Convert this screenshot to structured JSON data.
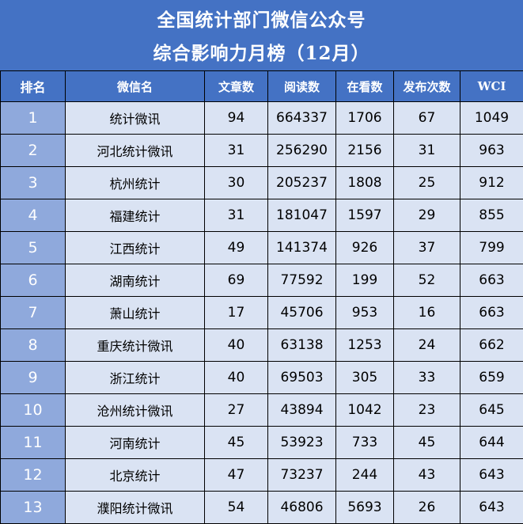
{
  "title": {
    "line1": "全国统计部门微信公众号",
    "line2": "综合影响力月榜（12月）"
  },
  "columns": [
    "排名",
    "微信名",
    "文章数",
    "阅读数",
    "在看数",
    "发布次数",
    "WCI"
  ],
  "rows": [
    {
      "rank": "1",
      "name": "统计微讯",
      "articles": "94",
      "reads": "664337",
      "likes": "1706",
      "posts": "67",
      "wci": "1049"
    },
    {
      "rank": "2",
      "name": "河北统计微讯",
      "articles": "31",
      "reads": "256290",
      "likes": "2156",
      "posts": "31",
      "wci": "963"
    },
    {
      "rank": "3",
      "name": "杭州统计",
      "articles": "30",
      "reads": "205237",
      "likes": "1808",
      "posts": "25",
      "wci": "912"
    },
    {
      "rank": "4",
      "name": "福建统计",
      "articles": "31",
      "reads": "181047",
      "likes": "1597",
      "posts": "29",
      "wci": "855"
    },
    {
      "rank": "5",
      "name": "江西统计",
      "articles": "49",
      "reads": "141374",
      "likes": "926",
      "posts": "37",
      "wci": "799"
    },
    {
      "rank": "6",
      "name": "湖南统计",
      "articles": "69",
      "reads": "77592",
      "likes": "199",
      "posts": "52",
      "wci": "663"
    },
    {
      "rank": "7",
      "name": "萧山统计",
      "articles": "17",
      "reads": "45706",
      "likes": "953",
      "posts": "16",
      "wci": "663"
    },
    {
      "rank": "8",
      "name": "重庆统计微讯",
      "articles": "40",
      "reads": "63138",
      "likes": "1253",
      "posts": "24",
      "wci": "662"
    },
    {
      "rank": "9",
      "name": "浙江统计",
      "articles": "40",
      "reads": "69503",
      "likes": "305",
      "posts": "33",
      "wci": "659"
    },
    {
      "rank": "10",
      "name": "沧州统计微讯",
      "articles": "27",
      "reads": "43894",
      "likes": "1042",
      "posts": "23",
      "wci": "645"
    },
    {
      "rank": "11",
      "name": "河南统计",
      "articles": "45",
      "reads": "53923",
      "likes": "733",
      "posts": "45",
      "wci": "644"
    },
    {
      "rank": "12",
      "name": "北京统计",
      "articles": "47",
      "reads": "73237",
      "likes": "244",
      "posts": "43",
      "wci": "643"
    },
    {
      "rank": "13",
      "name": "濮阳统计微讯",
      "articles": "54",
      "reads": "46806",
      "likes": "5693",
      "posts": "26",
      "wci": "643"
    }
  ],
  "colors": {
    "header_blue": "#4472c4",
    "rank_column_blue": "#8fa9dc",
    "row_fill": "#dae3f3",
    "border": "#000000"
  }
}
